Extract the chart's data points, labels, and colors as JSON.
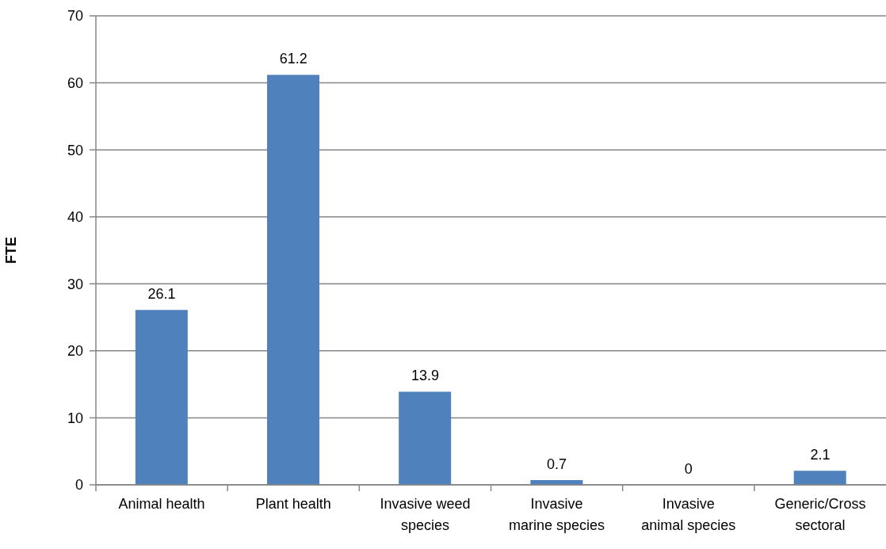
{
  "chart_data": {
    "type": "bar",
    "ylabel": "FTE",
    "categories": [
      "Animal health",
      "Plant health",
      "Invasive weed species",
      "Invasive marine species",
      "Invasive animal species",
      "Generic/Cross sectoral"
    ],
    "values": [
      26.1,
      61.2,
      13.9,
      0.7,
      0,
      2.1
    ],
    "color": "#4f81bd",
    "ylim": [
      0,
      70
    ],
    "yticks": [
      0,
      10,
      20,
      30,
      40,
      50,
      60,
      70
    ],
    "grid": "y",
    "data_labels": true
  }
}
